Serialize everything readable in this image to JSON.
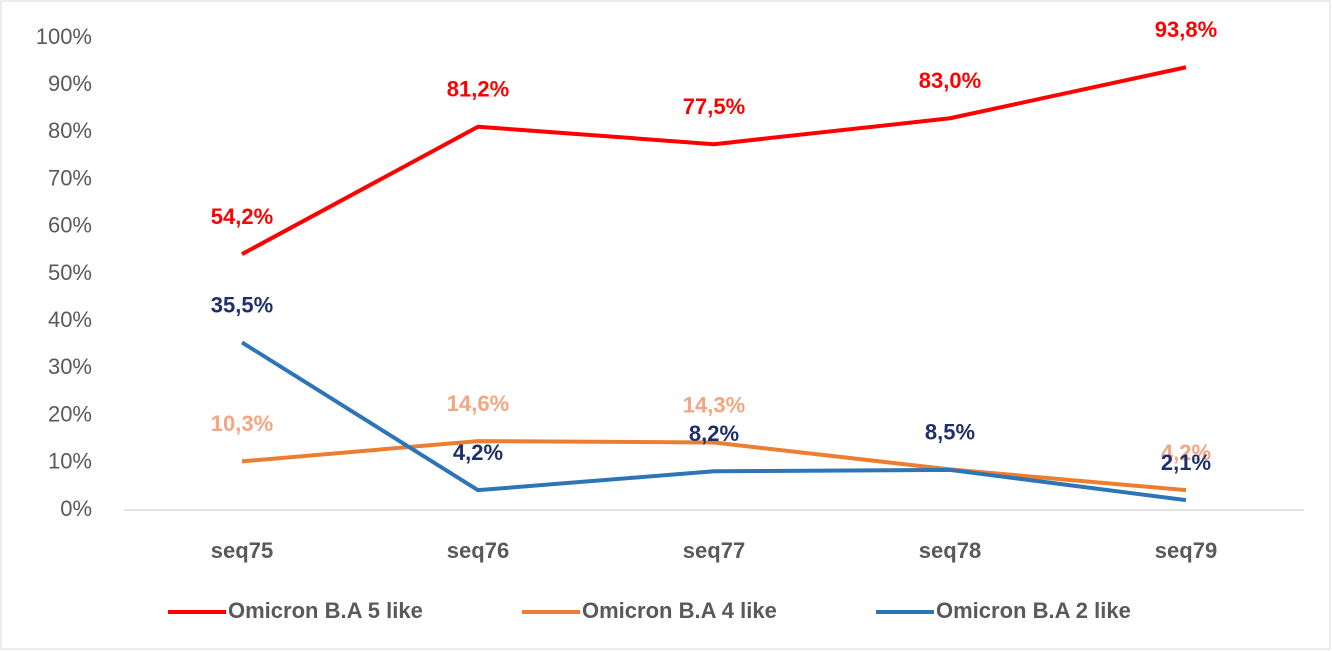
{
  "chart_data": {
    "type": "line",
    "categories": [
      "seq75",
      "seq76",
      "seq77",
      "seq78",
      "seq79"
    ],
    "series": [
      {
        "name": "Omicron B.A 5 like",
        "color": "#ff0000",
        "label_color": "#ff0000",
        "values": [
          54.2,
          81.2,
          77.5,
          83.0,
          93.8
        ],
        "value_labels": [
          "54,2%",
          "81,2%",
          "77,5%",
          "83,0%",
          "93,8%"
        ]
      },
      {
        "name": "Omicron B.A 4 like",
        "color": "#ed7d31",
        "label_color": "#f4a582",
        "values": [
          10.3,
          14.6,
          14.3,
          8.6,
          4.2
        ],
        "value_labels": [
          "10,3%",
          "14,6%",
          "14,3%",
          null,
          "4,2%"
        ]
      },
      {
        "name": "Omicron B.A 2 like",
        "color": "#2e75b6",
        "label_color": "#1f2f6b",
        "values": [
          35.5,
          4.2,
          8.2,
          8.5,
          2.1
        ],
        "value_labels": [
          "35,5%",
          "4,2%",
          "8,2%",
          "8,5%",
          "2,1%"
        ]
      }
    ],
    "ylim": [
      0,
      100
    ],
    "yticks": [
      {
        "value": 0,
        "label": "0%"
      },
      {
        "value": 10,
        "label": "10%"
      },
      {
        "value": 20,
        "label": "20%"
      },
      {
        "value": 30,
        "label": "30%"
      },
      {
        "value": 40,
        "label": "40%"
      },
      {
        "value": 50,
        "label": "50%"
      },
      {
        "value": 60,
        "label": "60%"
      },
      {
        "value": 70,
        "label": "70%"
      },
      {
        "value": 80,
        "label": "80%"
      },
      {
        "value": 90,
        "label": "90%"
      },
      {
        "value": 100,
        "label": "100%"
      }
    ],
    "grid": false,
    "legend": "bottom"
  }
}
